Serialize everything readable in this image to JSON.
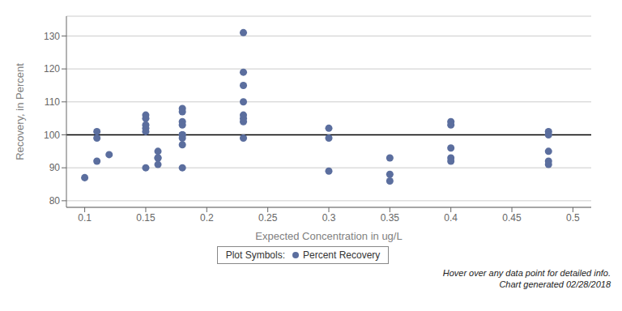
{
  "chart_data": {
    "type": "scatter",
    "x_label": "Expected Concentration in ug/L",
    "y_label": "Recovery, in Percent",
    "x": [
      0.1,
      0.11,
      0.11,
      0.11,
      0.12,
      0.15,
      0.15,
      0.15,
      0.15,
      0.15,
      0.15,
      0.16,
      0.16,
      0.16,
      0.16,
      0.18,
      0.18,
      0.18,
      0.18,
      0.18,
      0.18,
      0.18,
      0.18,
      0.18,
      0.23,
      0.23,
      0.23,
      0.23,
      0.23,
      0.23,
      0.23,
      0.23,
      0.3,
      0.3,
      0.3,
      0.35,
      0.35,
      0.35,
      0.4,
      0.4,
      0.4,
      0.4,
      0.4,
      0.48,
      0.48,
      0.48,
      0.48,
      0.48
    ],
    "series": [
      {
        "name": "Percent Recovery",
        "color": "#5b6e9e",
        "marker": "circle",
        "values": [
          87,
          101,
          99,
          92,
          94,
          106,
          105,
          103,
          102,
          101,
          90,
          95,
          93,
          93,
          91,
          108,
          107,
          104,
          103,
          100,
          100,
          99,
          97,
          90,
          131,
          119,
          115,
          110,
          106,
          105,
          104,
          99,
          102,
          99,
          89,
          93,
          88,
          86,
          104,
          103,
          96,
          93,
          92,
          101,
          100,
          95,
          92,
          91
        ]
      }
    ],
    "hline": {
      "y": 100,
      "color": "#000000"
    },
    "xlim": [
      0.085,
      0.515
    ],
    "ylim": [
      78,
      136
    ],
    "xticks": [
      0.1,
      0.15,
      0.2,
      0.25,
      0.3,
      0.35,
      0.4,
      0.45,
      0.5
    ],
    "yticks": [
      80,
      90,
      100,
      110,
      120,
      130
    ],
    "grid": "y",
    "legend": "bottom",
    "legend_title": "Plot Symbols:",
    "footnotes": [
      "Hover over any data point for detailed info.",
      "Chart generated 02/28/2018"
    ]
  }
}
